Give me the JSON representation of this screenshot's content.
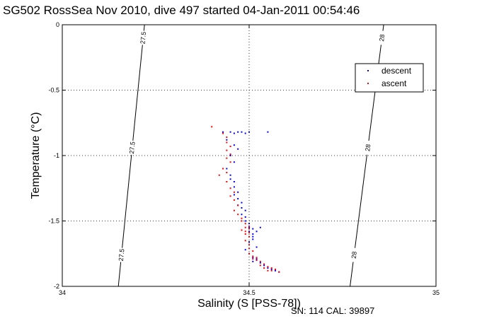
{
  "chart_data": {
    "type": "scatter",
    "title": "SG502 RossSea Nov 2010, dive 497 started 04-Jan-2011 00:54:46",
    "xlabel": "Salinity (S [PSS-78])",
    "ylabel": "Temperature (°C)",
    "xlim": [
      34,
      35
    ],
    "ylim": [
      -2,
      0
    ],
    "x_ticks": [
      34,
      34.5,
      35
    ],
    "x_tick_labels": [
      "34",
      "34.5",
      "35"
    ],
    "y_ticks": [
      -2,
      -1.5,
      -1,
      -0.5,
      0
    ],
    "y_tick_labels": [
      "-2",
      "-1.5",
      "-1",
      "-0.5",
      "0"
    ],
    "grid": true,
    "legend_position": "top-right",
    "footer": "SN: 114  CAL: 39897",
    "isopycnals": [
      {
        "label": "27.5",
        "x": [
          34.15,
          34.22
        ],
        "y": [
          -2,
          0
        ]
      },
      {
        "label": "28",
        "x": [
          34.77,
          34.86
        ],
        "y": [
          -2,
          0
        ]
      }
    ],
    "series": [
      {
        "name": "descent",
        "color": "#0000ff",
        "x": [
          34.43,
          34.45,
          34.46,
          34.47,
          34.48,
          34.49,
          34.5,
          34.55,
          34.44,
          34.46,
          34.47,
          34.45,
          34.46,
          34.44,
          34.45,
          34.46,
          34.45,
          34.46,
          34.47,
          34.46,
          34.47,
          34.48,
          34.47,
          34.48,
          34.49,
          34.48,
          34.49,
          34.49,
          34.5,
          34.5,
          34.51,
          34.5,
          34.51,
          34.51,
          34.52,
          34.5,
          34.52,
          34.53,
          34.51,
          34.49,
          34.5,
          34.51,
          34.52,
          34.51,
          34.52,
          34.53,
          34.54,
          34.55,
          34.56,
          34.57,
          34.58
        ],
        "y": [
          -0.82,
          -0.82,
          -0.83,
          -0.82,
          -0.82,
          -0.83,
          -0.82,
          -0.82,
          -0.88,
          -0.92,
          -0.95,
          -1.0,
          -1.05,
          -1.1,
          -1.15,
          -1.2,
          -1.18,
          -1.24,
          -1.28,
          -1.3,
          -1.33,
          -1.36,
          -1.38,
          -1.4,
          -1.42,
          -1.45,
          -1.47,
          -1.5,
          -1.52,
          -1.55,
          -1.56,
          -1.58,
          -1.6,
          -1.62,
          -1.58,
          -1.66,
          -1.7,
          -1.55,
          -1.64,
          -1.72,
          -1.75,
          -1.78,
          -1.79,
          -1.81,
          -1.8,
          -1.82,
          -1.84,
          -1.86,
          -1.87,
          -1.88,
          -1.89
        ]
      },
      {
        "name": "ascent",
        "color": "#ff0000",
        "x": [
          34.4,
          34.43,
          34.44,
          34.44,
          34.45,
          34.44,
          34.45,
          34.44,
          34.45,
          34.43,
          34.44,
          34.42,
          34.44,
          34.45,
          34.46,
          34.45,
          34.46,
          34.47,
          34.46,
          34.47,
          34.48,
          34.48,
          34.49,
          34.5,
          34.49,
          34.5,
          34.48,
          34.49,
          34.5,
          34.49,
          34.5,
          34.49,
          34.5,
          34.5,
          34.51,
          34.5,
          34.51,
          34.52,
          34.51,
          34.52,
          34.53,
          34.54,
          34.55,
          34.56,
          34.57,
          34.58,
          34.55,
          34.56,
          34.53,
          34.54
        ],
        "y": [
          -0.78,
          -0.83,
          -0.86,
          -0.9,
          -0.93,
          -0.96,
          -0.99,
          -1.02,
          -1.05,
          -1.1,
          -1.13,
          -1.15,
          -1.2,
          -1.25,
          -1.28,
          -1.31,
          -1.34,
          -1.38,
          -1.42,
          -1.45,
          -1.48,
          -1.5,
          -1.52,
          -1.54,
          -1.55,
          -1.56,
          -1.57,
          -1.58,
          -1.59,
          -1.6,
          -1.62,
          -1.65,
          -1.68,
          -1.71,
          -1.73,
          -1.75,
          -1.77,
          -1.78,
          -1.79,
          -1.8,
          -1.81,
          -1.83,
          -1.85,
          -1.86,
          -1.87,
          -1.89,
          -1.88,
          -1.88,
          -1.84,
          -1.86
        ]
      }
    ]
  }
}
